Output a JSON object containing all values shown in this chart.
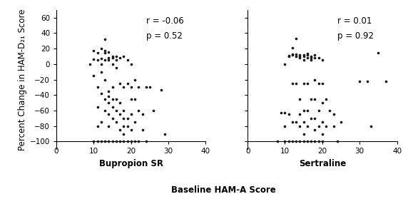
{
  "plot1": {
    "x": [
      9,
      10,
      10,
      10,
      10,
      11,
      11,
      11,
      11,
      11,
      11,
      12,
      12,
      12,
      12,
      12,
      12,
      12,
      13,
      13,
      13,
      13,
      13,
      13,
      13,
      13,
      14,
      14,
      14,
      14,
      14,
      14,
      14,
      14,
      14,
      15,
      15,
      15,
      15,
      15,
      15,
      15,
      15,
      16,
      16,
      16,
      16,
      16,
      16,
      16,
      17,
      17,
      17,
      17,
      17,
      17,
      18,
      18,
      18,
      18,
      18,
      18,
      18,
      19,
      19,
      19,
      19,
      19,
      20,
      20,
      20,
      20,
      20,
      20,
      21,
      21,
      21,
      21,
      22,
      22,
      22,
      23,
      23,
      24,
      24,
      25,
      26,
      28,
      29
    ],
    "y": [
      0,
      17,
      6,
      -15,
      -100,
      15,
      5,
      -30,
      -55,
      -80,
      -100,
      20,
      7,
      0,
      -10,
      -38,
      -75,
      -100,
      32,
      17,
      15,
      5,
      -20,
      -45,
      -60,
      -100,
      16,
      8,
      5,
      -35,
      -42,
      -50,
      -65,
      -80,
      -100,
      10,
      8,
      0,
      -30,
      -45,
      -55,
      -70,
      -100,
      10,
      5,
      -5,
      -45,
      -60,
      -75,
      -100,
      8,
      -25,
      -50,
      -65,
      -85,
      -100,
      10,
      -30,
      -60,
      -70,
      -80,
      -90,
      -100,
      5,
      -25,
      -70,
      -80,
      -100,
      0,
      -30,
      -45,
      -65,
      -85,
      -100,
      -20,
      -45,
      -75,
      -100,
      -30,
      -60,
      -100,
      -65,
      -85,
      -30,
      -100,
      -30,
      -60,
      -33,
      -90
    ],
    "r": -0.06,
    "p": 0.52,
    "xlabel": "Bupropion SR",
    "xlim": [
      0,
      40
    ],
    "xticks": [
      0,
      10,
      20,
      30,
      40
    ]
  },
  "plot2": {
    "x": [
      8,
      9,
      10,
      10,
      10,
      10,
      11,
      11,
      11,
      11,
      12,
      12,
      12,
      12,
      12,
      12,
      13,
      13,
      13,
      13,
      13,
      13,
      14,
      14,
      14,
      14,
      14,
      14,
      14,
      15,
      15,
      15,
      15,
      15,
      15,
      15,
      15,
      16,
      16,
      16,
      16,
      16,
      16,
      16,
      17,
      17,
      17,
      17,
      17,
      17,
      18,
      18,
      18,
      18,
      18,
      18,
      18,
      19,
      19,
      19,
      19,
      19,
      20,
      20,
      20,
      20,
      20,
      20,
      21,
      21,
      22,
      23,
      23,
      24,
      25,
      30,
      32,
      33,
      35,
      37
    ],
    "y": [
      -100,
      -63,
      0,
      -63,
      -80,
      -100,
      11,
      10,
      -65,
      -100,
      21,
      13,
      12,
      -25,
      -75,
      -100,
      33,
      13,
      10,
      -25,
      -75,
      -100,
      12,
      10,
      8,
      -45,
      -65,
      -80,
      -100,
      12,
      10,
      5,
      -25,
      -60,
      -75,
      -90,
      -100,
      14,
      12,
      8,
      -25,
      -60,
      -80,
      -100,
      10,
      8,
      5,
      -45,
      -70,
      -100,
      12,
      8,
      -20,
      -45,
      -70,
      -85,
      -100,
      8,
      -25,
      -60,
      -80,
      -100,
      5,
      -25,
      -50,
      -75,
      -90,
      -100,
      -45,
      -80,
      -60,
      -65,
      -80,
      -100,
      -75,
      -22,
      -22,
      -80,
      15,
      -22
    ],
    "r": 0.01,
    "p": 0.92,
    "xlabel": "Sertraline",
    "xlim": [
      0,
      40
    ],
    "xticks": [
      0,
      10,
      20,
      30,
      40
    ]
  },
  "ylabel": "Percent Change in HAM-D₂₁ Score",
  "shared_xlabel": "Baseline HAM-A Score",
  "ylim": [
    -110,
    70
  ],
  "yticks": [
    -100,
    -80,
    -60,
    -40,
    -20,
    0,
    20,
    40,
    60
  ],
  "dot_color": "#1a1a1a",
  "dot_size": 7,
  "background_color": "#ffffff",
  "annotation_fontsize": 8.5,
  "label_fontsize": 8.5,
  "tick_fontsize": 7.5
}
